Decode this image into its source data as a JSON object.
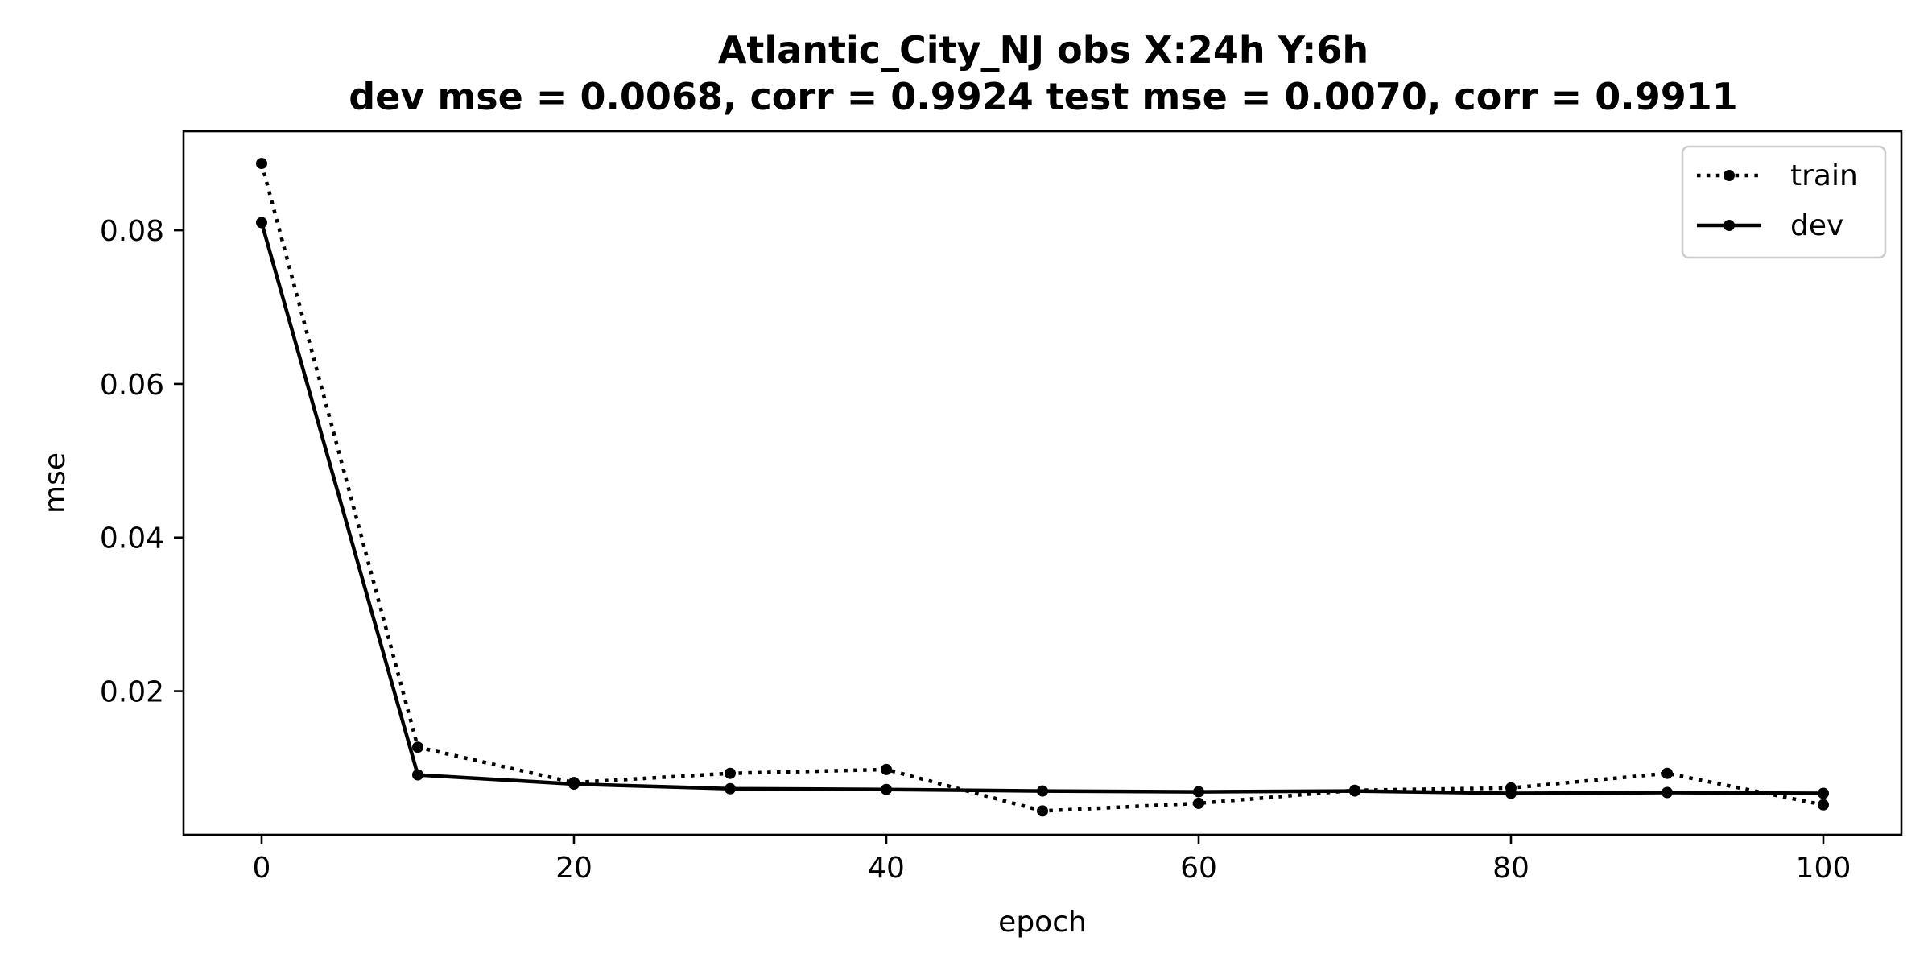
{
  "chart_data": {
    "type": "line",
    "title": "Atlantic_City_NJ   obs   X:24h   Y:6h",
    "subtitle": "dev mse = 0.0068, corr = 0.9924   test mse = 0.0070, corr = 0.9911",
    "xlabel": "epoch",
    "ylabel": "mse",
    "xlim": [
      -5,
      105
    ],
    "ylim": [
      0.0013,
      0.0929
    ],
    "xticks": [
      0,
      20,
      40,
      60,
      80,
      100
    ],
    "xtick_labels": [
      "0",
      "20",
      "40",
      "60",
      "80",
      "100"
    ],
    "yticks": [
      0.02,
      0.04,
      0.06,
      0.08
    ],
    "ytick_labels": [
      "0.02",
      "0.04",
      "0.06",
      "0.08"
    ],
    "grid": false,
    "legend_position": "top-right",
    "x": [
      0,
      10,
      20,
      30,
      40,
      50,
      60,
      70,
      80,
      90,
      100
    ],
    "series": [
      {
        "name": "train",
        "style": "dotted",
        "marker": "dot",
        "color": "#000000",
        "values": [
          0.0887,
          0.0127,
          0.0081,
          0.0093,
          0.0098,
          0.0044,
          0.0054,
          0.0071,
          0.0074,
          0.0093,
          0.0052
        ]
      },
      {
        "name": "dev",
        "style": "solid",
        "marker": "dot",
        "color": "#000000",
        "values": [
          0.081,
          0.0091,
          0.0079,
          0.0073,
          0.0072,
          0.007,
          0.0069,
          0.007,
          0.0067,
          0.0068,
          0.0067
        ]
      }
    ]
  }
}
